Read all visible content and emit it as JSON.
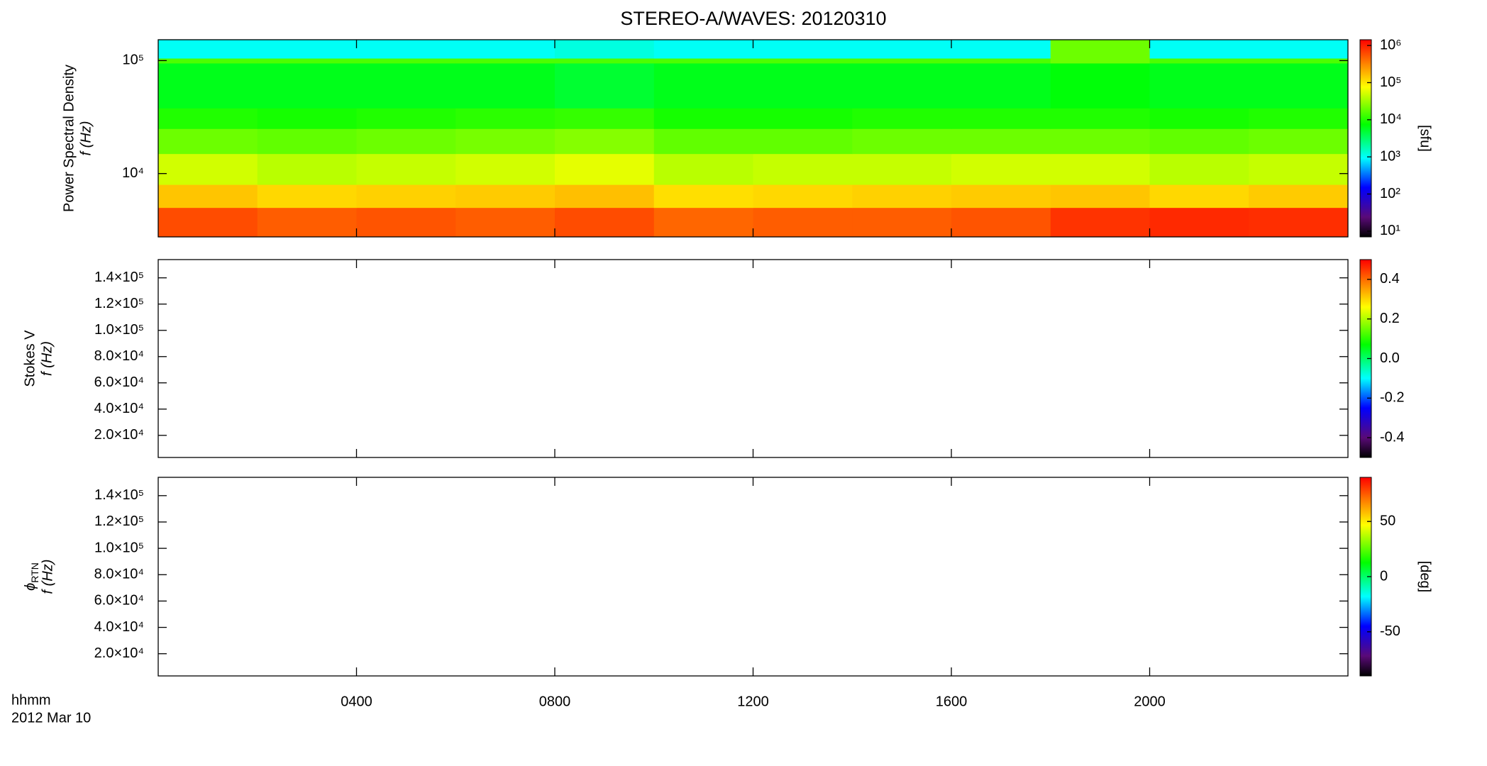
{
  "chart_data": [
    {
      "type": "heatmap",
      "title": "STEREO-A/WAVES: 20120310",
      "y_label": [
        "Power Spectral Density",
        "f (Hz)"
      ],
      "ylog": true,
      "ylim": [
        2750,
        153000
      ],
      "yticks": [
        {
          "value": 10000,
          "label": "10⁴"
        },
        {
          "value": 100000,
          "label": "10⁵"
        }
      ],
      "x_bins": [
        0,
        2,
        4,
        6,
        8,
        10,
        12,
        14,
        16,
        18,
        20,
        22,
        24
      ],
      "y_bins": [
        2750,
        5000,
        8000,
        15000,
        25000,
        38000,
        95000,
        105000,
        153000
      ],
      "values": [
        [
          600000,
          500000,
          550000,
          500000,
          600000,
          450000,
          500000,
          500000,
          550000,
          800000,
          900000,
          850000
        ],
        [
          150000,
          120000,
          130000,
          140000,
          160000,
          110000,
          120000,
          130000,
          140000,
          150000,
          120000,
          140000
        ],
        [
          50000,
          40000,
          45000,
          50000,
          60000,
          40000,
          45000,
          45000,
          50000,
          50000,
          40000,
          45000
        ],
        [
          20000,
          18000,
          20000,
          22000,
          25000,
          18000,
          18000,
          20000,
          20000,
          20000,
          18000,
          20000
        ],
        [
          10000,
          9000,
          10000,
          11000,
          12000,
          9000,
          9000,
          10000,
          10000,
          10000,
          9000,
          10000
        ],
        [
          6000,
          6000,
          6000,
          6000,
          5000,
          6000,
          6000,
          6000,
          6000,
          7000,
          6000,
          6000
        ],
        [
          15000,
          15000,
          15000,
          15000,
          15000,
          15000,
          15000,
          15000,
          15000,
          20000,
          15000,
          15000
        ],
        [
          1000,
          1000,
          1000,
          1000,
          1200,
          1000,
          1000,
          1000,
          1000,
          20000,
          1000,
          1000
        ]
      ],
      "clog": true,
      "clim": [
        7,
        1430000
      ],
      "cticks": [
        {
          "value": 10,
          "label": "10¹"
        },
        {
          "value": 100,
          "label": "10²"
        },
        {
          "value": 1000,
          "label": "10³"
        },
        {
          "value": 10000,
          "label": "10⁴"
        },
        {
          "value": 100000,
          "label": "10⁵"
        },
        {
          "value": 1000000,
          "label": "10⁶"
        }
      ],
      "colorbar_label": "[sfu]"
    },
    {
      "type": "heatmap",
      "y_label": [
        "Stokes V",
        "f (Hz)"
      ],
      "ylim": [
        3150,
        153900
      ],
      "yticks": [
        {
          "value": 20000,
          "label": "2.0×10⁴"
        },
        {
          "value": 40000,
          "label": "4.0×10⁴"
        },
        {
          "value": 60000,
          "label": "6.0×10⁴"
        },
        {
          "value": 80000,
          "label": "8.0×10⁴"
        },
        {
          "value": 100000,
          "label": "1.0×10⁵"
        },
        {
          "value": 120000,
          "label": "1.2×10⁵"
        },
        {
          "value": 140000,
          "label": "1.4×10⁵"
        }
      ],
      "clim": [
        -0.5,
        0.5
      ],
      "cticks": [
        -0.4,
        -0.2,
        {
          "value": 0,
          "label": "0.0"
        },
        0.2,
        0.4
      ]
    },
    {
      "type": "heatmap",
      "y_label": [
        "ϕ",
        "RTN",
        "f (Hz)"
      ],
      "ylim": [
        3150,
        153900
      ],
      "yticks": [
        {
          "value": 20000,
          "label": "2.0×10⁴"
        },
        {
          "value": 40000,
          "label": "4.0×10⁴"
        },
        {
          "value": 60000,
          "label": "6.0×10⁴"
        },
        {
          "value": 80000,
          "label": "8.0×10⁴"
        },
        {
          "value": 100000,
          "label": "1.0×10⁵"
        },
        {
          "value": 120000,
          "label": "1.2×10⁵"
        },
        {
          "value": 140000,
          "label": "1.4×10⁵"
        }
      ],
      "clim": [
        -90,
        90
      ],
      "cticks": [
        -50,
        0,
        50
      ],
      "colorbar_label": "[deg]",
      "xlim": [
        0,
        24
      ],
      "xticks": [
        {
          "value": 4,
          "label": "0400"
        },
        {
          "value": 8,
          "label": "0800"
        },
        {
          "value": 12,
          "label": "1200"
        },
        {
          "value": 16,
          "label": "1600"
        },
        {
          "value": 20,
          "label": "2000"
        }
      ],
      "x_note": [
        "hhmm",
        "2012 Mar 10"
      ]
    }
  ]
}
